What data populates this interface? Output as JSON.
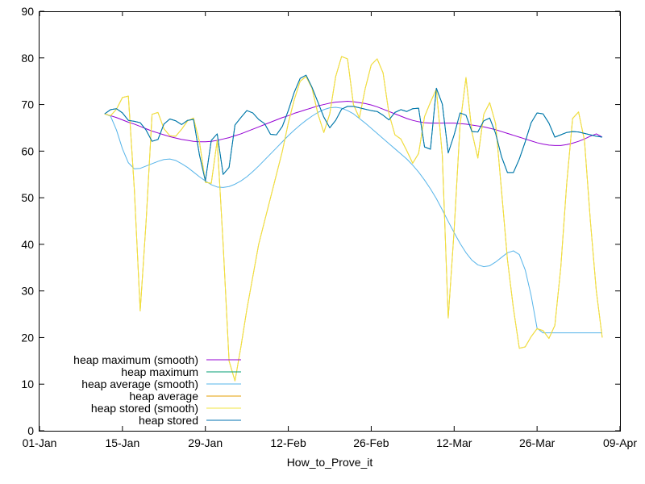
{
  "chart_data": {
    "type": "line",
    "title": "",
    "xlabel": "How_to_Prove_it",
    "ylabel": "",
    "x_type": "date",
    "xlim": [
      "2021-01-01",
      "2021-04-09"
    ],
    "ylim": [
      0,
      90
    ],
    "x_ticks": [
      "01-Jan",
      "15-Jan",
      "29-Jan",
      "12-Feb",
      "26-Feb",
      "12-Mar",
      "26-Mar",
      "09-Apr"
    ],
    "y_ticks": [
      "0",
      "10",
      "20",
      "30",
      "40",
      "50",
      "60",
      "70",
      "80",
      "90"
    ],
    "grid": false,
    "legend_position": "bottom-left",
    "x": [
      "2021-01-12",
      "2021-01-13",
      "2021-01-14",
      "2021-01-15",
      "2021-01-16",
      "2021-01-17",
      "2021-01-18",
      "2021-01-19",
      "2021-01-20",
      "2021-01-21",
      "2021-01-22",
      "2021-01-23",
      "2021-01-24",
      "2021-01-25",
      "2021-01-26",
      "2021-01-27",
      "2021-01-28",
      "2021-01-29",
      "2021-01-30",
      "2021-01-31",
      "2021-02-01",
      "2021-02-02",
      "2021-02-03",
      "2021-02-04",
      "2021-02-05",
      "2021-02-06",
      "2021-02-07",
      "2021-02-08",
      "2021-02-09",
      "2021-02-10",
      "2021-02-11",
      "2021-02-12",
      "2021-02-13",
      "2021-02-14",
      "2021-02-15",
      "2021-02-16",
      "2021-02-17",
      "2021-02-18",
      "2021-02-19",
      "2021-02-20",
      "2021-02-21",
      "2021-02-22",
      "2021-02-23",
      "2021-02-24",
      "2021-02-25",
      "2021-02-26",
      "2021-02-27",
      "2021-02-28",
      "2021-03-01",
      "2021-03-02",
      "2021-03-03",
      "2021-03-04",
      "2021-03-05",
      "2021-03-06",
      "2021-03-07",
      "2021-03-08",
      "2021-03-09",
      "2021-03-10",
      "2021-03-11",
      "2021-03-12",
      "2021-03-13",
      "2021-03-14",
      "2021-03-15",
      "2021-03-16",
      "2021-03-17",
      "2021-03-18",
      "2021-03-19",
      "2021-03-20",
      "2021-03-21",
      "2021-03-22",
      "2021-03-23",
      "2021-03-24",
      "2021-03-25",
      "2021-03-26",
      "2021-03-27",
      "2021-03-28",
      "2021-03-29",
      "2021-03-30",
      "2021-03-31",
      "2021-04-01",
      "2021-04-02",
      "2021-04-03",
      "2021-04-04",
      "2021-04-05",
      "2021-04-06"
    ],
    "series": [
      {
        "name": "heap maximum (smooth)",
        "color": "#9400d3",
        "values": [
          68.0,
          67.6,
          67.2,
          66.7,
          66.2,
          65.8,
          65.3,
          64.8,
          64.3,
          63.9,
          63.5,
          63.1,
          62.8,
          62.5,
          62.3,
          62.1,
          62.0,
          62.0,
          62.1,
          62.3,
          62.6,
          62.9,
          63.3,
          63.7,
          64.2,
          64.7,
          65.2,
          65.7,
          66.2,
          66.7,
          67.2,
          67.6,
          68.1,
          68.5,
          68.9,
          69.3,
          69.7,
          70.0,
          70.3,
          70.5,
          70.6,
          70.7,
          70.6,
          70.4,
          70.2,
          69.9,
          69.5,
          69.0,
          68.5,
          68.0,
          67.5,
          67.0,
          66.6,
          66.3,
          66.1,
          66.0,
          66.0,
          66.0,
          66.0,
          66.0,
          65.9,
          65.8,
          65.6,
          65.4,
          65.2,
          64.9,
          64.6,
          64.2,
          63.8,
          63.4,
          63.0,
          62.6,
          62.2,
          61.8,
          61.5,
          61.3,
          61.2,
          61.2,
          61.4,
          61.7,
          62.1,
          62.6,
          63.2,
          63.7,
          63.0
        ]
      },
      {
        "name": "heap maximum",
        "color": "#009e73",
        "values": [
          68.0,
          68.9,
          69.1,
          68.2,
          66.6,
          66.4,
          66.1,
          64.5,
          62.1,
          62.5,
          65.8,
          66.9,
          66.5,
          65.7,
          66.6,
          66.8,
          59.2,
          53.6,
          62.3,
          63.7,
          55.0,
          56.5,
          65.6,
          67.2,
          68.7,
          68.2,
          66.8,
          65.9,
          63.6,
          63.5,
          65.3,
          68.7,
          72.6,
          75.6,
          76.3,
          73.7,
          70.5,
          67.3,
          65.0,
          66.6,
          69.0,
          69.6,
          69.6,
          69.3,
          69.0,
          68.7,
          68.5,
          67.7,
          66.7,
          68.3,
          68.9,
          68.5,
          69.1,
          69.2,
          60.9,
          60.4,
          73.5,
          70.1,
          59.6,
          63.5,
          68.2,
          67.7,
          64.2,
          64.1,
          66.5,
          67.1,
          63.8,
          58.8,
          55.4,
          55.4,
          58.3,
          62.0,
          66.1,
          68.2,
          68.0,
          66.0,
          63.0,
          63.5,
          64.0,
          64.2,
          64.1,
          63.8,
          63.5,
          63.2,
          63.0
        ]
      },
      {
        "name": "heap average (smooth)",
        "color": "#56b4e9",
        "values": [
          68.0,
          67.5,
          64.5,
          60.5,
          57.5,
          56.2,
          56.3,
          56.8,
          57.3,
          57.8,
          58.2,
          58.3,
          58.0,
          57.3,
          56.5,
          55.5,
          54.5,
          53.6,
          52.8,
          52.3,
          52.2,
          52.4,
          52.9,
          53.6,
          54.5,
          55.6,
          56.8,
          58.1,
          59.4,
          60.7,
          62.0,
          63.3,
          64.5,
          65.6,
          66.6,
          67.5,
          68.3,
          68.9,
          69.3,
          69.4,
          69.2,
          68.7,
          68.0,
          67.0,
          66.0,
          64.9,
          63.8,
          62.7,
          61.6,
          60.5,
          59.4,
          58.3,
          57.0,
          55.5,
          53.8,
          51.9,
          49.8,
          47.4,
          44.9,
          42.5,
          40.2,
          38.2,
          36.6,
          35.6,
          35.2,
          35.4,
          36.2,
          37.2,
          38.2,
          38.6,
          37.8,
          34.5,
          29.0,
          22.0,
          21.0,
          21.0,
          21.0,
          21.0,
          21.0,
          21.0,
          21.0,
          21.0,
          21.0,
          21.0,
          21.0
        ]
      },
      {
        "name": "heap average",
        "color": "#e69f00",
        "values": [
          68.0,
          67.6,
          69.0,
          71.5,
          71.8,
          52.0,
          25.7,
          45.0,
          67.9,
          68.3,
          64.8,
          63.3,
          63.2,
          64.7,
          66.5,
          67.1,
          62.0,
          53.3,
          53.1,
          62.3,
          40.0,
          15.0,
          10.7,
          18.0,
          26.0,
          33.0,
          40.0,
          45.0,
          50.0,
          55.0,
          60.0,
          66.0,
          71.0,
          75.0,
          76.0,
          73.5,
          68.0,
          64.0,
          68.0,
          76.0,
          80.3,
          79.8,
          70.0,
          67.1,
          73.5,
          78.5,
          79.8,
          76.8,
          68.0,
          63.5,
          62.6,
          60.1,
          57.4,
          59.5,
          67.4,
          70.5,
          73.3,
          59.1,
          24.2,
          43.1,
          65.7,
          75.8,
          64.1,
          58.5,
          67.9,
          70.4,
          65.9,
          51.5,
          36.7,
          26.3,
          17.7,
          18.0,
          20.2,
          21.9,
          21.5,
          19.8,
          22.6,
          35.0,
          53.0,
          67.0,
          68.4,
          62.3,
          45.0,
          30.0,
          20.0
        ]
      },
      {
        "name": "heap stored (smooth)",
        "color": "#f0e442",
        "values": [
          68.0,
          67.6,
          69.0,
          71.5,
          71.8,
          52.0,
          25.7,
          45.0,
          67.9,
          68.3,
          64.8,
          63.3,
          63.2,
          64.7,
          66.5,
          67.1,
          62.0,
          53.3,
          53.1,
          62.3,
          40.0,
          15.0,
          10.7,
          18.0,
          26.0,
          33.0,
          40.0,
          45.0,
          50.0,
          55.0,
          60.0,
          66.0,
          71.0,
          75.0,
          76.0,
          73.5,
          68.0,
          64.0,
          68.0,
          76.0,
          80.3,
          79.8,
          70.0,
          67.1,
          73.5,
          78.5,
          79.8,
          76.8,
          68.0,
          63.5,
          62.6,
          60.1,
          57.4,
          59.5,
          67.4,
          70.5,
          73.3,
          59.1,
          24.2,
          43.1,
          65.7,
          75.8,
          64.1,
          58.5,
          67.9,
          70.4,
          65.9,
          51.5,
          36.7,
          26.3,
          17.7,
          18.0,
          20.2,
          21.9,
          21.5,
          19.8,
          22.6,
          35.0,
          53.0,
          67.0,
          68.4,
          62.3,
          45.0,
          30.0,
          20.0
        ]
      },
      {
        "name": "heap stored",
        "color": "#0072b2",
        "values": [
          68.0,
          68.9,
          69.1,
          68.2,
          66.6,
          66.4,
          66.1,
          64.5,
          62.1,
          62.5,
          65.8,
          66.9,
          66.5,
          65.7,
          66.6,
          66.8,
          59.2,
          53.6,
          62.3,
          63.7,
          55.0,
          56.5,
          65.6,
          67.2,
          68.7,
          68.2,
          66.8,
          65.9,
          63.6,
          63.5,
          65.3,
          68.7,
          72.6,
          75.6,
          76.3,
          73.7,
          70.5,
          67.3,
          65.0,
          66.6,
          69.0,
          69.6,
          69.6,
          69.3,
          69.0,
          68.7,
          68.5,
          67.7,
          66.7,
          68.3,
          68.9,
          68.5,
          69.1,
          69.2,
          60.9,
          60.4,
          73.5,
          70.1,
          59.6,
          63.5,
          68.2,
          67.7,
          64.2,
          64.1,
          66.5,
          67.1,
          63.8,
          58.8,
          55.4,
          55.4,
          58.3,
          62.0,
          66.1,
          68.2,
          68.0,
          66.0,
          63.0,
          63.5,
          64.0,
          64.2,
          64.1,
          63.8,
          63.5,
          63.2,
          63.0
        ]
      }
    ]
  }
}
